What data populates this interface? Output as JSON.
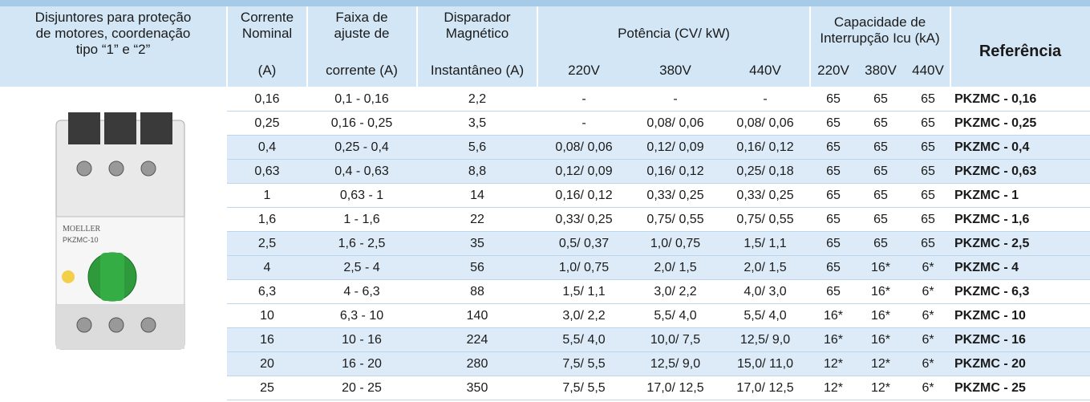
{
  "header": {
    "description": [
      "Disjuntores para proteção",
      "de motores, coordenação",
      "tipo “1” e “2”"
    ],
    "nominal": [
      "Corrente",
      "Nominal",
      "(A)"
    ],
    "range": [
      "Faixa de",
      "ajuste de",
      "corrente (A)"
    ],
    "trip": [
      "Disparador",
      "Magnético",
      "Instantâneo (A)"
    ],
    "power": "Potência (CV/ kW)",
    "power_cols": [
      "220V",
      "380V",
      "440V"
    ],
    "capacity": [
      "Capacidade de",
      "Interrupção Icu (kA)"
    ],
    "capacity_cols": [
      "220V",
      "380V",
      "440V"
    ],
    "reference": "Referência"
  },
  "image": {
    "brand": "MOELLER",
    "model": "PKZMC-10"
  },
  "table": {
    "rows": [
      [
        "0,16",
        "0,1 - 0,16",
        "2,2",
        "-",
        "-",
        "-",
        "65",
        "65",
        "65",
        "PKZMC - 0,16"
      ],
      [
        "0,25",
        "0,16 - 0,25",
        "3,5",
        "-",
        "0,08/ 0,06",
        "0,08/ 0,06",
        "65",
        "65",
        "65",
        "PKZMC - 0,25"
      ],
      [
        "0,4",
        "0,25 - 0,4",
        "5,6",
        "0,08/ 0,06",
        "0,12/ 0,09",
        "0,16/ 0,12",
        "65",
        "65",
        "65",
        "PKZMC - 0,4"
      ],
      [
        "0,63",
        "0,4 - 0,63",
        "8,8",
        "0,12/ 0,09",
        "0,16/ 0,12",
        "0,25/ 0,18",
        "65",
        "65",
        "65",
        "PKZMC - 0,63"
      ],
      [
        "1",
        "0,63 - 1",
        "14",
        "0,16/ 0,12",
        "0,33/ 0,25",
        "0,33/ 0,25",
        "65",
        "65",
        "65",
        "PKZMC - 1"
      ],
      [
        "1,6",
        "1 - 1,6",
        "22",
        "0,33/ 0,25",
        "0,75/ 0,55",
        "0,75/ 0,55",
        "65",
        "65",
        "65",
        "PKZMC - 1,6"
      ],
      [
        "2,5",
        "1,6 - 2,5",
        "35",
        "0,5/ 0,37",
        "1,0/ 0,75",
        "1,5/ 1,1",
        "65",
        "65",
        "65",
        "PKZMC - 2,5"
      ],
      [
        "4",
        "2,5 - 4",
        "56",
        "1,0/ 0,75",
        "2,0/ 1,5",
        "2,0/ 1,5",
        "65",
        "16*",
        "6*",
        "PKZMC - 4"
      ],
      [
        "6,3",
        "4 - 6,3",
        "88",
        "1,5/ 1,1",
        "3,0/ 2,2",
        "4,0/ 3,0",
        "65",
        "16*",
        "6*",
        "PKZMC - 6,3"
      ],
      [
        "10",
        "6,3 - 10",
        "140",
        "3,0/ 2,2",
        "5,5/ 4,0",
        "5,5/ 4,0",
        "16*",
        "16*",
        "6*",
        "PKZMC - 10"
      ],
      [
        "16",
        "10 - 16",
        "224",
        "5,5/ 4,0",
        "10,0/ 7,5",
        "12,5/ 9,0",
        "16*",
        "16*",
        "6*",
        "PKZMC - 16"
      ],
      [
        "20",
        "16 - 20",
        "280",
        "7,5/ 5,5",
        "12,5/ 9,0",
        "15,0/ 11,0",
        "12*",
        "12*",
        "6*",
        "PKZMC - 20"
      ],
      [
        "25",
        "20 - 25",
        "350",
        "7,5/ 5,5",
        "17,0/ 12,5",
        "17,0/ 12,5",
        "12*",
        "12*",
        "6*",
        "PKZMC - 25"
      ]
    ]
  }
}
